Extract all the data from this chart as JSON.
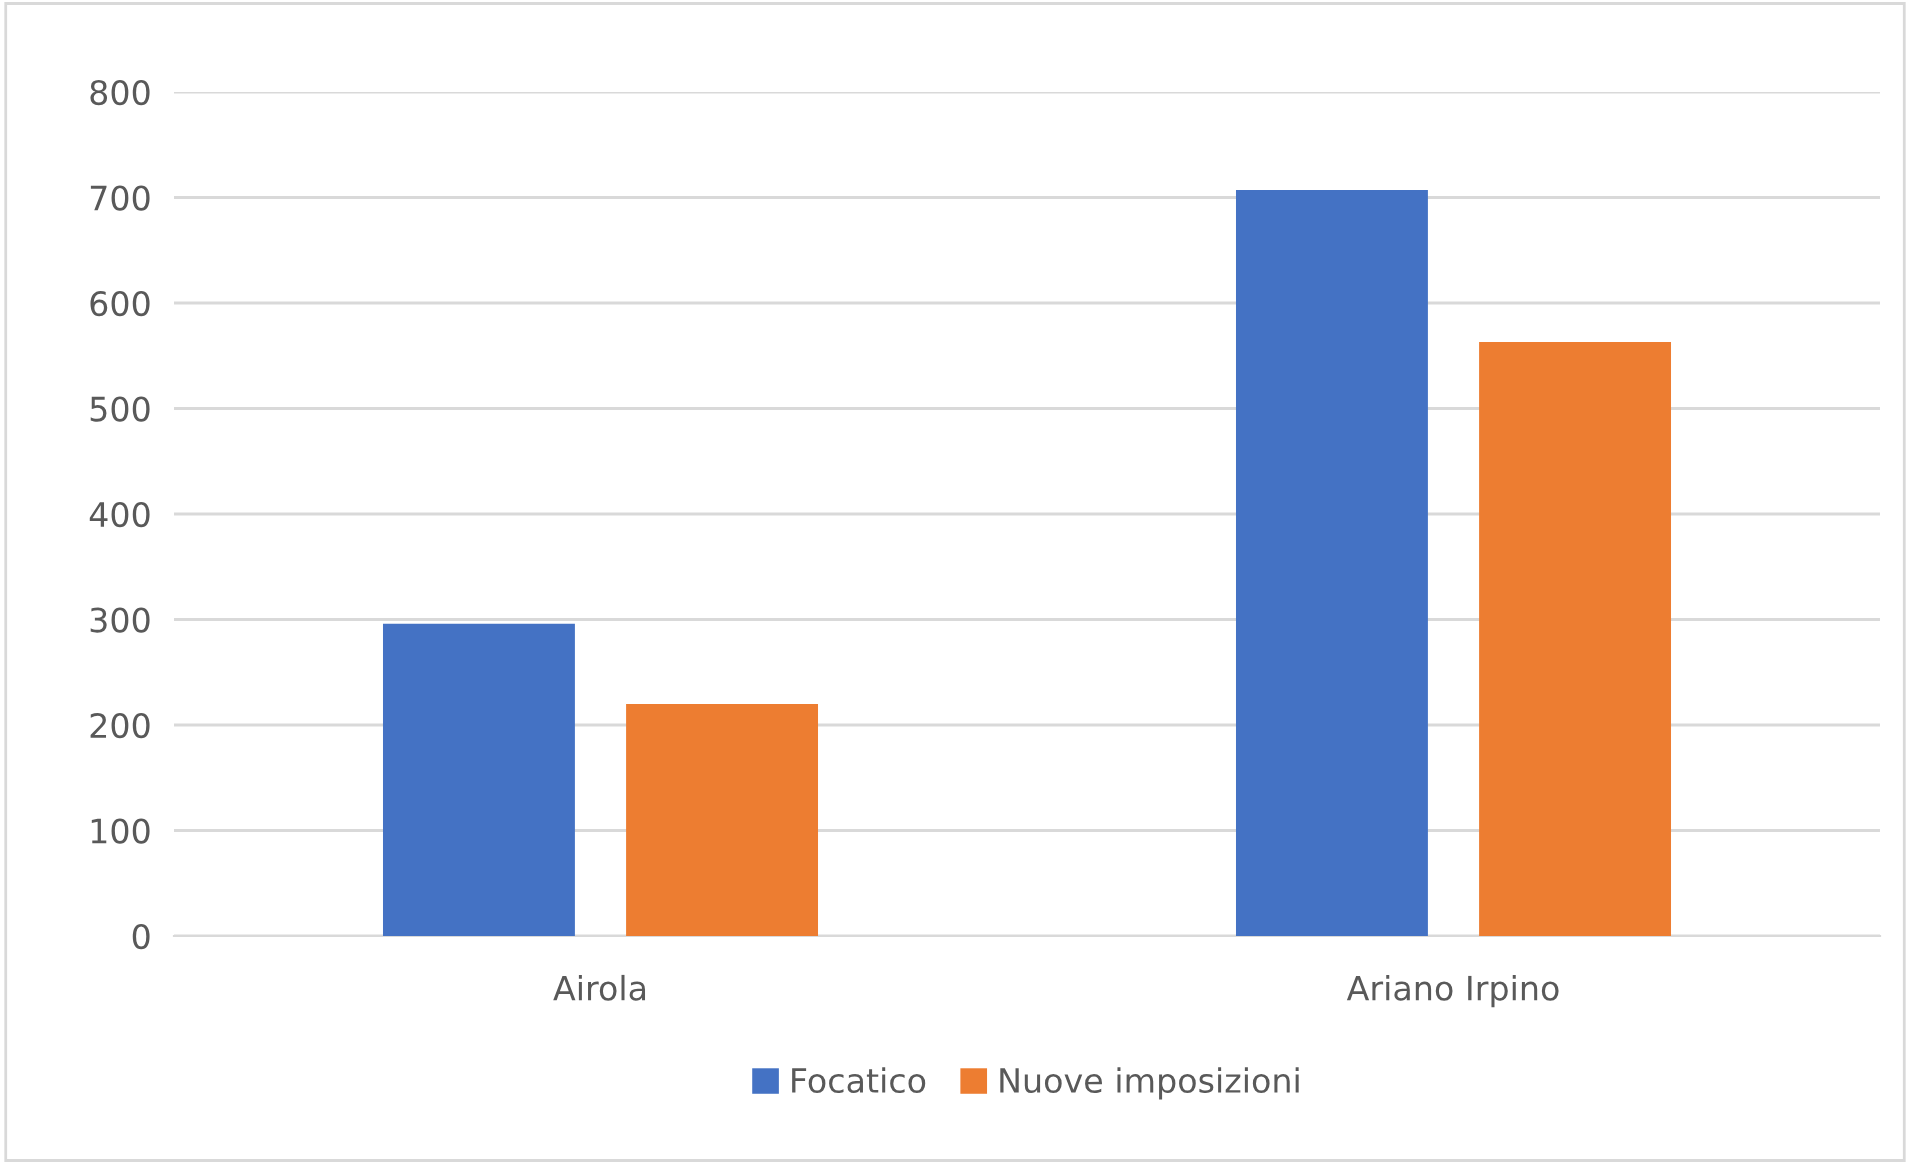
{
  "chart_data": {
    "type": "bar",
    "categories": [
      "Airola",
      "Ariano Irpino"
    ],
    "series": [
      {
        "name": "Focatico",
        "color": "#4472c4",
        "values": [
          296,
          707
        ]
      },
      {
        "name": "Nuove imposizioni",
        "color": "#ed7d31",
        "values": [
          220,
          563
        ]
      }
    ],
    "ylim": [
      0,
      800
    ],
    "yticks": [
      0,
      100,
      200,
      300,
      400,
      500,
      600,
      700,
      800
    ],
    "grid": "y",
    "legend": "bottom"
  }
}
